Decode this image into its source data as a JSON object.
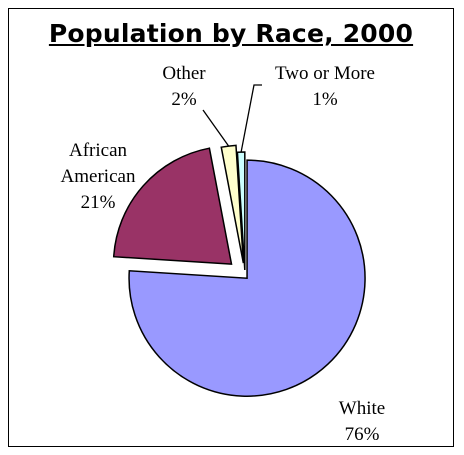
{
  "chart_data": {
    "type": "pie",
    "title": "Population by Race, 2000",
    "slices": [
      {
        "name": "White",
        "value": 76,
        "label": "76%",
        "color": "#9999ff"
      },
      {
        "name": "African American",
        "value": 21,
        "label": "21%",
        "color": "#993366"
      },
      {
        "name": "Other",
        "value": 2,
        "label": "2%",
        "color": "#ffffcc"
      },
      {
        "name": "Two or More",
        "value": 1,
        "label": "1%",
        "color": "#ccffff"
      }
    ],
    "exploded": true,
    "legend": "none",
    "labels": "outside with leader lines"
  }
}
